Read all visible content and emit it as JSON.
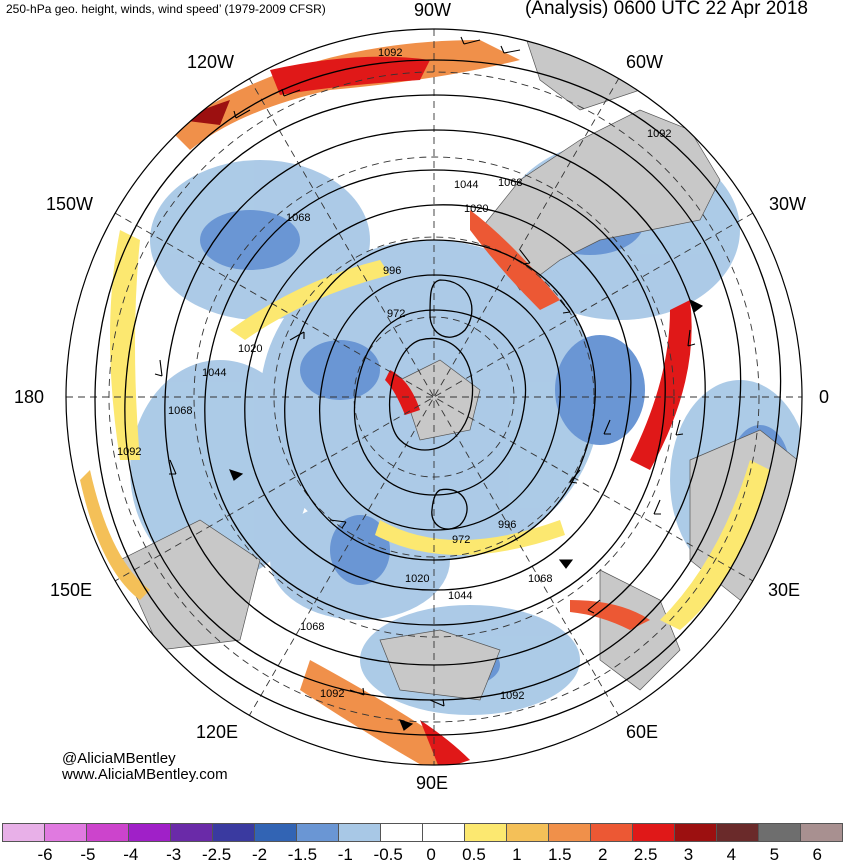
{
  "header": {
    "left_title": "250-hPa geo. height, winds, wind speed’ (1979-2009 CFSR)",
    "right_title": "(Analysis) 0600 UTC 22 Apr 2018"
  },
  "longitude_labels": {
    "w90": "90W",
    "w120": "120W",
    "w60": "60W",
    "w150": "150W",
    "w30": "30W",
    "lon180": "180",
    "lon0": "0",
    "e150": "150E",
    "e30": "30E",
    "e120": "120E",
    "e60": "60E",
    "e90": "90E"
  },
  "contour_labels": {
    "c1": "1092",
    "c2": "1092",
    "c3": "1068",
    "c4": "1044",
    "c5": "1020",
    "c6": "1068",
    "c7": "996",
    "c8": "972",
    "c9": "1020",
    "c10": "1044",
    "c11": "1068",
    "c12": "1092",
    "c13": "972",
    "c14": "996",
    "c15": "1020",
    "c16": "1044",
    "c17": "1068",
    "c18": "1068",
    "c19": "1092",
    "c20": "1092"
  },
  "credit": {
    "handle": "@AliciaMBentley",
    "website": "www.AliciaMBentley.com"
  },
  "colorbar": {
    "ticks": [
      "-6",
      "-5",
      "-4",
      "-3",
      "-2.5",
      "-2",
      "-1.5",
      "-1",
      "-0.5",
      "0",
      "0.5",
      "1",
      "1.5",
      "2",
      "2.5",
      "3",
      "4",
      "5",
      "6"
    ],
    "colors": [
      "#e8b0e8",
      "#e07ae0",
      "#cc44cc",
      "#a020c8",
      "#6a2aa8",
      "#3a3aa0",
      "#3264b4",
      "#6a96d4",
      "#a8c8e6",
      "#ffffff",
      "#ffffff",
      "#fce870",
      "#f4c058",
      "#f0904a",
      "#ec5834",
      "#e01818",
      "#9c1010",
      "#6a2a2a",
      "#6e6e6e",
      "#a89090"
    ]
  },
  "colors": {
    "land": "#c8c8c8",
    "ocean_background": "#ffffff",
    "blue_anomaly": "#6a96d4",
    "red_jet": "#e01818"
  }
}
